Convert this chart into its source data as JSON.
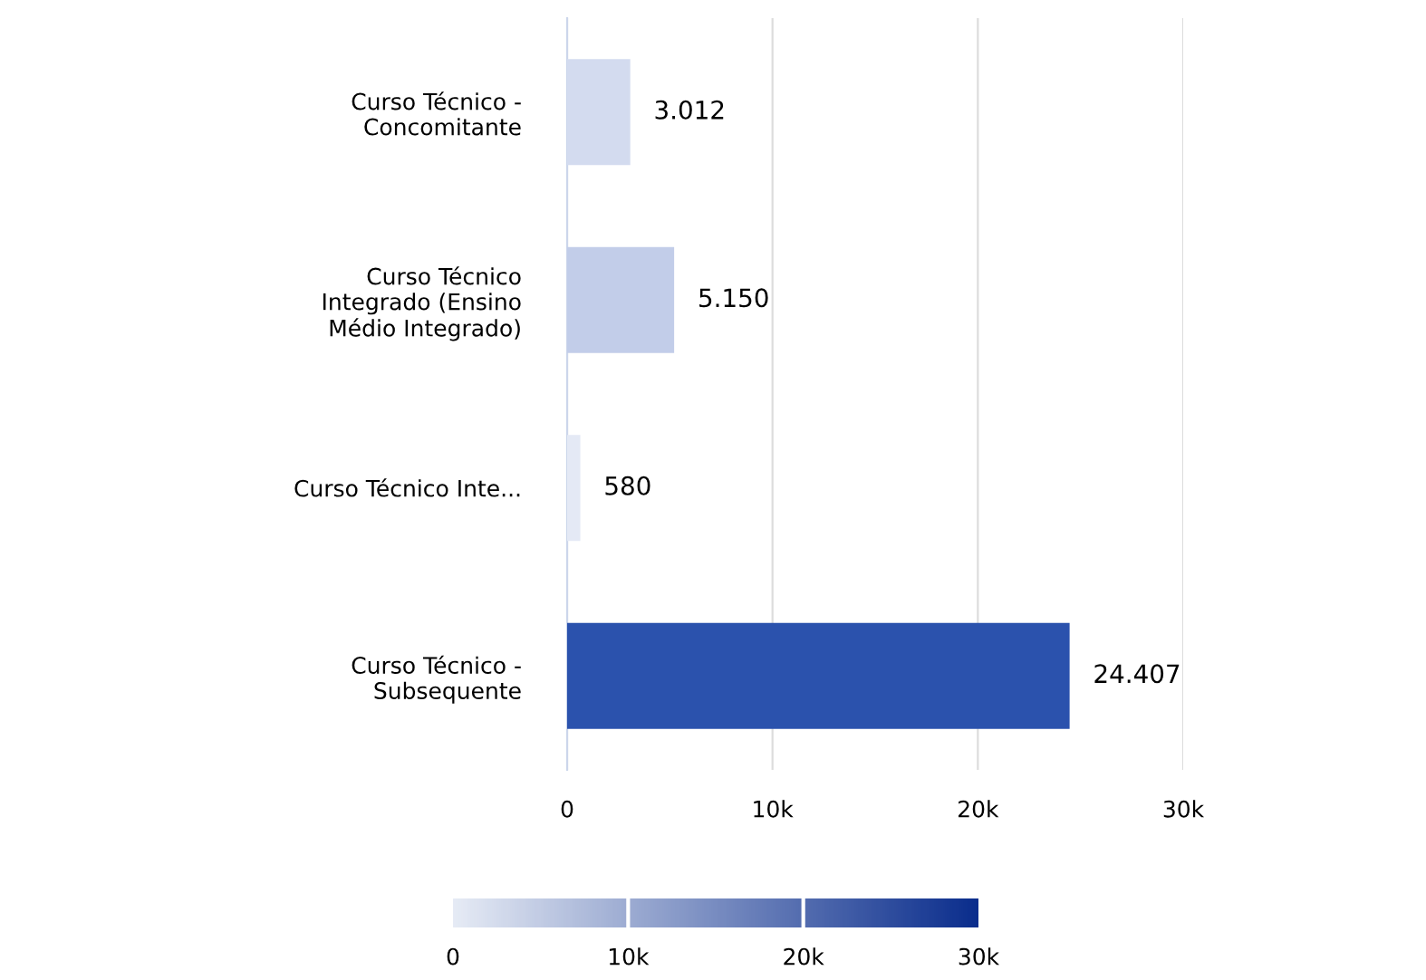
{
  "chart_data": {
    "type": "bar",
    "orientation": "horizontal",
    "categories": [
      "Curso Técnico -\nConcomitante",
      "Curso Técnico\nIntegrado (Ensino\nMédio Integrado)",
      "Curso Técnico Inte...",
      "Curso Técnico -\nSubsequente"
    ],
    "values": [
      3012,
      5150,
      580,
      24407
    ],
    "value_labels": [
      "3.012",
      "5.150",
      "580",
      "24.407"
    ],
    "colors": [
      "#d3dbef",
      "#c2cde9",
      "#e4e9f5",
      "#2b52ad"
    ],
    "xlim": [
      0,
      30000
    ],
    "xticks": [
      {
        "value": 0,
        "label": "0"
      },
      {
        "value": 10000,
        "label": "10k"
      },
      {
        "value": 20000,
        "label": "20k"
      },
      {
        "value": 30000,
        "label": "30k"
      }
    ],
    "grid": "x",
    "clim": [
      0,
      30000
    ],
    "cticks": [
      {
        "value": 0,
        "label": "0"
      },
      {
        "value": 10000,
        "label": "10k"
      },
      {
        "value": 20000,
        "label": "20k"
      },
      {
        "value": 30000,
        "label": "30k"
      }
    ]
  }
}
